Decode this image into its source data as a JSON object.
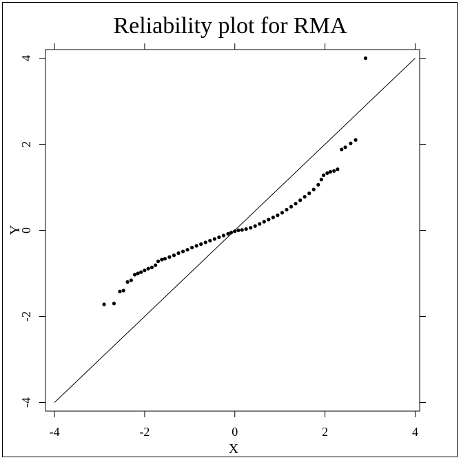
{
  "chart_data": {
    "type": "scatter",
    "title": "Reliability plot for RMA",
    "xlabel": "X",
    "ylabel": "Y",
    "xlim": [
      -4.2,
      4.1
    ],
    "ylim": [
      -4.2,
      4.2
    ],
    "x_ticks": [
      -4,
      -2,
      0,
      2,
      4
    ],
    "y_ticks": [
      -4,
      -2,
      0,
      2,
      4
    ],
    "x_tick_labels": [
      "-4",
      "-2",
      "0",
      "2",
      "4"
    ],
    "y_tick_labels": [
      "-4",
      "-2",
      "0",
      "2",
      "4"
    ],
    "grid": false,
    "reference_line": {
      "from": [
        -4,
        -4
      ],
      "to": [
        4,
        4
      ]
    },
    "series": [
      {
        "color": "#000000",
        "points": [
          [
            -2.9,
            -1.72
          ],
          [
            -2.68,
            -1.7
          ],
          [
            -2.55,
            -1.42
          ],
          [
            -2.47,
            -1.4
          ],
          [
            -2.38,
            -1.2
          ],
          [
            -2.3,
            -1.16
          ],
          [
            -2.22,
            -1.03
          ],
          [
            -2.15,
            -1.0
          ],
          [
            -2.08,
            -0.97
          ],
          [
            -2.0,
            -0.93
          ],
          [
            -1.92,
            -0.89
          ],
          [
            -1.84,
            -0.86
          ],
          [
            -1.76,
            -0.81
          ],
          [
            -1.7,
            -0.72
          ],
          [
            -1.62,
            -0.68
          ],
          [
            -1.55,
            -0.66
          ],
          [
            -1.45,
            -0.62
          ],
          [
            -1.35,
            -0.58
          ],
          [
            -1.25,
            -0.53
          ],
          [
            -1.15,
            -0.49
          ],
          [
            -1.05,
            -0.45
          ],
          [
            -0.95,
            -0.4
          ],
          [
            -0.85,
            -0.36
          ],
          [
            -0.75,
            -0.32
          ],
          [
            -0.65,
            -0.28
          ],
          [
            -0.55,
            -0.24
          ],
          [
            -0.45,
            -0.2
          ],
          [
            -0.35,
            -0.16
          ],
          [
            -0.25,
            -0.12
          ],
          [
            -0.15,
            -0.08
          ],
          [
            -0.08,
            -0.05
          ],
          [
            0.0,
            -0.02
          ],
          [
            0.08,
            0.0
          ],
          [
            0.16,
            0.01
          ],
          [
            0.25,
            0.03
          ],
          [
            0.35,
            0.06
          ],
          [
            0.45,
            0.1
          ],
          [
            0.55,
            0.15
          ],
          [
            0.65,
            0.2
          ],
          [
            0.75,
            0.25
          ],
          [
            0.85,
            0.3
          ],
          [
            0.95,
            0.35
          ],
          [
            1.05,
            0.41
          ],
          [
            1.15,
            0.48
          ],
          [
            1.25,
            0.55
          ],
          [
            1.35,
            0.62
          ],
          [
            1.45,
            0.7
          ],
          [
            1.55,
            0.78
          ],
          [
            1.65,
            0.86
          ],
          [
            1.75,
            0.95
          ],
          [
            1.85,
            1.06
          ],
          [
            1.92,
            1.18
          ],
          [
            1.97,
            1.28
          ],
          [
            2.05,
            1.33
          ],
          [
            2.12,
            1.36
          ],
          [
            2.2,
            1.38
          ],
          [
            2.28,
            1.42
          ],
          [
            2.37,
            1.88
          ],
          [
            2.45,
            1.93
          ],
          [
            2.57,
            2.02
          ],
          [
            2.68,
            2.1
          ],
          [
            2.9,
            4.0
          ]
        ]
      }
    ]
  }
}
